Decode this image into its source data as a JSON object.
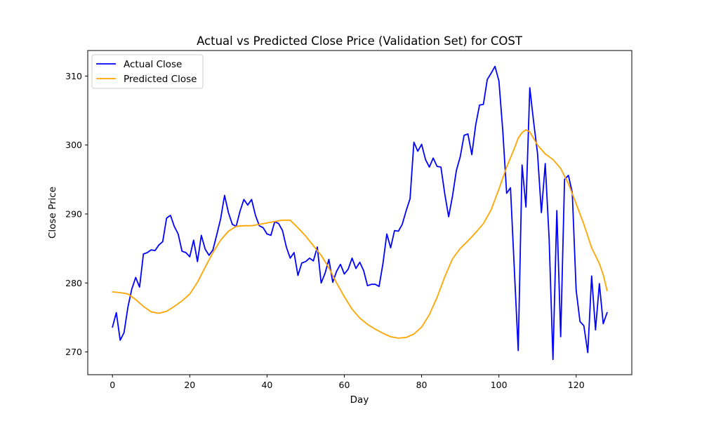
{
  "chart_data": {
    "type": "line",
    "title": "Actual vs Predicted Close Price (Validation Set) for COST",
    "xlabel": "Day",
    "ylabel": "Close Price",
    "xlim": [
      -6.4,
      134.4
    ],
    "ylim": [
      266.7,
      313.7
    ],
    "xticks": [
      0,
      20,
      40,
      60,
      80,
      100,
      120
    ],
    "yticks": [
      270,
      280,
      290,
      300,
      310
    ],
    "grid": false,
    "legend_position": "top-left",
    "series": [
      {
        "name": "Actual Close",
        "color": "#0000ff",
        "x": [
          0,
          1,
          2,
          3,
          4,
          5,
          6,
          7,
          8,
          9,
          10,
          11,
          12,
          13,
          14,
          15,
          16,
          17,
          18,
          19,
          20,
          21,
          22,
          23,
          24,
          25,
          26,
          27,
          28,
          29,
          30,
          31,
          32,
          33,
          34,
          35,
          36,
          37,
          38,
          39,
          40,
          41,
          42,
          43,
          44,
          45,
          46,
          47,
          48,
          49,
          50,
          51,
          52,
          53,
          54,
          55,
          56,
          57,
          58,
          59,
          60,
          61,
          62,
          63,
          64,
          65,
          66,
          67,
          68,
          69,
          70,
          71,
          72,
          73,
          74,
          75,
          76,
          77,
          78,
          79,
          80,
          81,
          82,
          83,
          84,
          85,
          86,
          87,
          88,
          89,
          90,
          91,
          92,
          93,
          94,
          95,
          96,
          97,
          98,
          99,
          100,
          101,
          102,
          103,
          104,
          105,
          106,
          107,
          108,
          109,
          110,
          111,
          112,
          113,
          114,
          115,
          116,
          117,
          118,
          119,
          120,
          121,
          122,
          123,
          124,
          125,
          126,
          127,
          128
        ],
        "values": [
          273.6,
          275.7,
          271.7,
          272.8,
          276.5,
          279.1,
          280.8,
          279.4,
          284.2,
          284.4,
          284.8,
          284.7,
          285.5,
          286.0,
          289.4,
          289.8,
          288.2,
          287.1,
          284.6,
          284.4,
          283.8,
          286.2,
          283.1,
          286.9,
          284.9,
          284.0,
          284.8,
          287.0,
          289.3,
          292.7,
          290.2,
          288.5,
          288.2,
          290.4,
          292.1,
          291.3,
          292.1,
          289.8,
          288.3,
          288.0,
          287.1,
          286.9,
          288.9,
          288.6,
          287.6,
          285.2,
          283.6,
          284.4,
          281.1,
          282.9,
          283.1,
          283.6,
          283.2,
          285.2,
          280.0,
          281.4,
          283.4,
          280.1,
          281.7,
          282.7,
          281.3,
          282.0,
          283.6,
          282.1,
          283.0,
          281.8,
          279.6,
          279.8,
          279.8,
          279.5,
          282.8,
          287.1,
          285.1,
          287.6,
          287.5,
          288.5,
          290.5,
          292.2,
          300.4,
          299.1,
          300.1,
          297.9,
          296.8,
          298.1,
          296.9,
          296.8,
          292.9,
          289.6,
          292.6,
          296.3,
          298.3,
          301.4,
          301.6,
          298.6,
          302.9,
          305.8,
          305.9,
          309.5,
          310.4,
          311.4,
          309.3,
          302.1,
          293.0,
          293.8,
          281.9,
          270.2,
          297.1,
          291.0,
          308.3,
          303.3,
          298.8,
          290.2,
          297.3,
          286.5,
          268.9,
          290.5,
          272.2,
          295.0,
          295.6,
          293.1,
          279.0,
          274.4,
          273.8,
          269.9,
          281.0,
          273.2,
          279.9,
          274.1,
          275.7
        ]
      },
      {
        "name": "Predicted Close",
        "color": "#ffa500",
        "x": [
          0,
          2,
          4,
          6,
          8,
          10,
          12,
          14,
          16,
          18,
          20,
          22,
          24,
          26,
          28,
          30,
          32,
          34,
          36,
          38,
          40,
          42,
          44,
          46,
          48,
          50,
          52,
          54,
          56,
          58,
          60,
          62,
          64,
          66,
          68,
          70,
          72,
          74,
          76,
          78,
          80,
          82,
          84,
          86,
          88,
          90,
          92,
          94,
          96,
          98,
          100,
          102,
          104,
          105,
          106,
          107,
          108,
          110,
          112,
          114,
          116,
          118,
          120,
          122,
          124,
          126,
          127,
          128
        ],
        "values": [
          278.7,
          278.6,
          278.4,
          277.6,
          276.6,
          275.8,
          275.6,
          275.9,
          276.6,
          277.4,
          278.4,
          280.1,
          282.3,
          284.4,
          286.2,
          287.5,
          288.2,
          288.3,
          288.3,
          288.5,
          288.7,
          288.9,
          289.1,
          289.1,
          288.0,
          286.8,
          285.4,
          284.0,
          282.2,
          280.0,
          278.0,
          276.2,
          274.9,
          274.0,
          273.3,
          272.7,
          272.2,
          272.0,
          272.1,
          272.6,
          273.6,
          275.4,
          277.9,
          280.9,
          283.5,
          285.0,
          286.1,
          287.3,
          288.6,
          290.6,
          293.6,
          296.8,
          299.5,
          301.0,
          301.8,
          302.2,
          301.9,
          300.0,
          298.7,
          297.9,
          296.6,
          294.4,
          291.5,
          288.5,
          285.1,
          282.8,
          281.2,
          278.9
        ]
      }
    ]
  }
}
